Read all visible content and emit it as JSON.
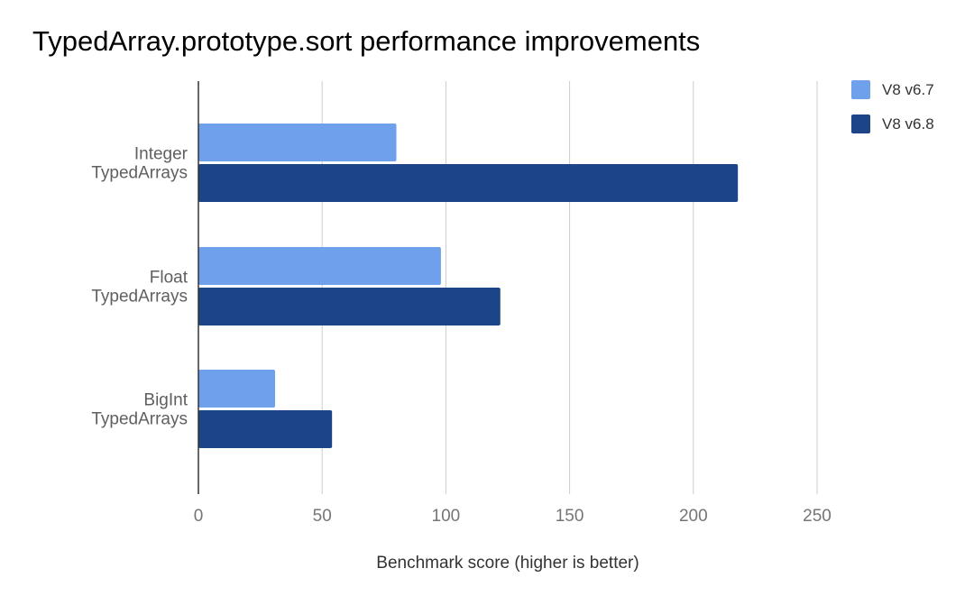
{
  "chart_data": {
    "type": "bar",
    "orientation": "horizontal",
    "title": "TypedArray.prototype.sort performance improvements",
    "xlabel": "Benchmark score (higher is better)",
    "ylabel": "",
    "categories": [
      [
        "Integer",
        "TypedArrays"
      ],
      [
        "Float",
        "TypedArrays"
      ],
      [
        "BigInt",
        "TypedArrays"
      ]
    ],
    "series": [
      {
        "name": "V8 v6.7",
        "color": "#6fa0eb",
        "values": [
          80,
          98,
          31
        ]
      },
      {
        "name": "V8 v6.8",
        "color": "#1c4587",
        "values": [
          218,
          122,
          54
        ]
      }
    ],
    "xlim": [
      0,
      250
    ],
    "xticks": [
      "0",
      "50",
      "100",
      "150",
      "200",
      "250"
    ],
    "grid": true,
    "legend_position": "top-right"
  }
}
